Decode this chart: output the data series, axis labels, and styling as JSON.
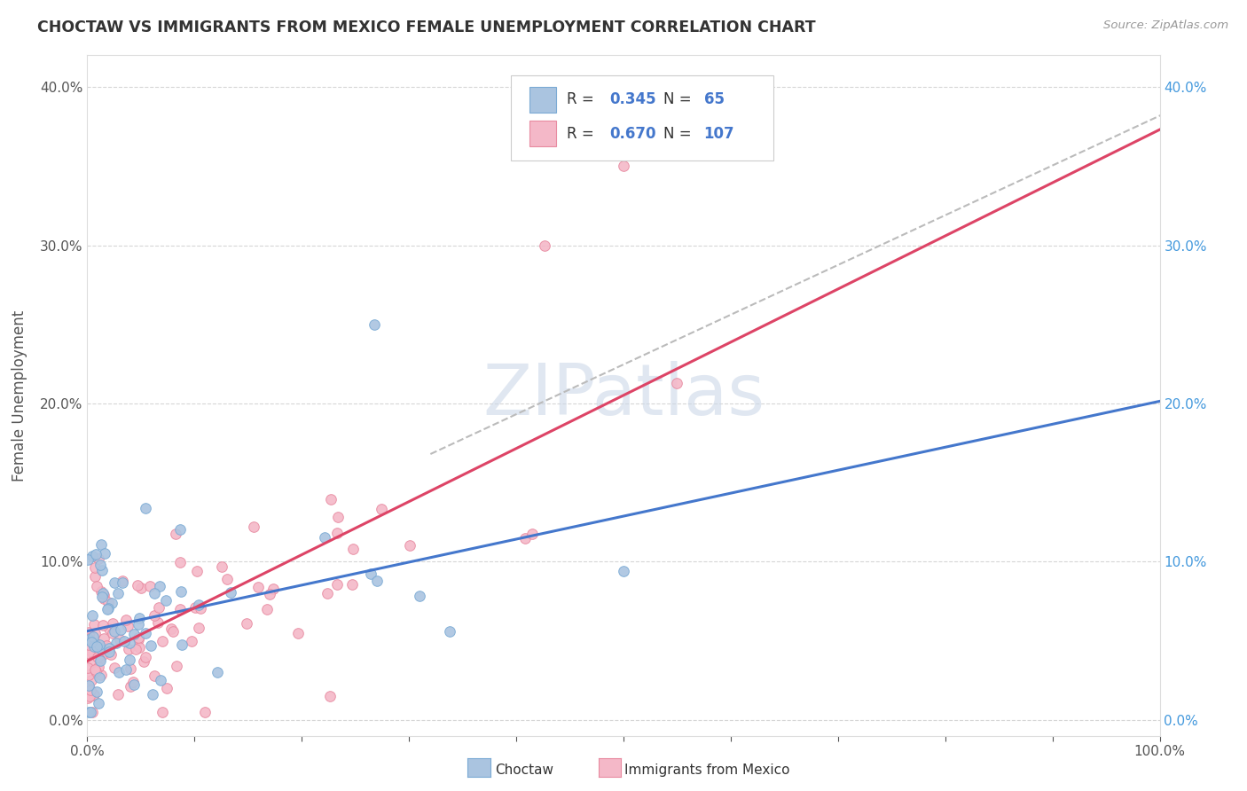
{
  "title": "CHOCTAW VS IMMIGRANTS FROM MEXICO FEMALE UNEMPLOYMENT CORRELATION CHART",
  "source": "Source: ZipAtlas.com",
  "ylabel": "Female Unemployment",
  "xlim": [
    0.0,
    1.0
  ],
  "ylim": [
    -0.01,
    0.42
  ],
  "y_ticks": [
    0.0,
    0.1,
    0.2,
    0.3,
    0.4
  ],
  "background_color": "#ffffff",
  "grid_color": "#cccccc",
  "choctaw_color": "#aac4e0",
  "choctaw_edge_color": "#7aaad4",
  "mexico_color": "#f4b8c8",
  "mexico_edge_color": "#e88aa0",
  "choctaw_R": 0.345,
  "choctaw_N": 65,
  "mexico_R": 0.67,
  "mexico_N": 107,
  "choctaw_line_color": "#4477cc",
  "mexico_line_color": "#dd4466",
  "dashed_line_color": "#bbbbbb",
  "legend_label_choctaw": "Choctaw",
  "legend_label_mexico": "Immigrants from Mexico",
  "watermark": "ZIPatlas",
  "watermark_color": "#ccd8e8",
  "legend_r_color": "#333333",
  "legend_val_color": "#4477cc",
  "title_color": "#333333",
  "source_color": "#999999",
  "label_color": "#555555",
  "tick_color": "#555555",
  "right_tick_color": "#4499dd"
}
